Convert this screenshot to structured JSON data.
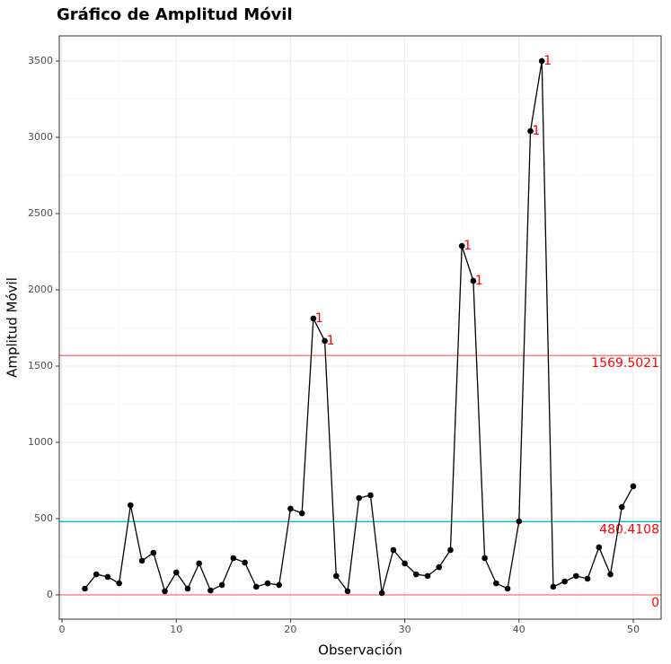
{
  "chart_data": {
    "type": "line",
    "title": "Gráfico de Amplitud Móvil",
    "x_label": "Observación",
    "y_label": "Amplitud Móvil",
    "x": [
      2,
      3,
      4,
      5,
      6,
      7,
      8,
      9,
      10,
      11,
      12,
      13,
      14,
      15,
      16,
      17,
      18,
      19,
      20,
      21,
      22,
      23,
      24,
      25,
      26,
      27,
      28,
      29,
      30,
      31,
      32,
      33,
      34,
      35,
      36,
      37,
      38,
      39,
      40,
      41,
      42,
      43,
      44,
      45,
      46,
      47,
      48,
      49,
      50
    ],
    "series": [
      {
        "color": "#000000",
        "values": [
          41,
          135,
          118,
          76,
          588,
          224,
          276,
          24,
          147,
          41,
          206,
          29,
          65,
          241,
          212,
          53,
          76,
          65,
          565,
          535,
          1812,
          1665,
          124,
          24,
          635,
          653,
          12,
          294,
          206,
          135,
          124,
          182,
          294,
          2288,
          2059,
          241,
          76,
          41,
          482,
          3041,
          3500,
          53,
          88,
          124,
          106,
          312,
          135,
          576,
          712
        ]
      }
    ],
    "hlines": [
      {
        "value": 1569.5021,
        "color": "#f8766d"
      },
      {
        "value": 480.4108,
        "color": "#00bfc4"
      },
      {
        "value": 0,
        "color": "#f8766d"
      }
    ],
    "violations": [
      {
        "x": 22,
        "label": "1"
      },
      {
        "x": 23,
        "label": "1"
      },
      {
        "x": 35,
        "label": "1"
      },
      {
        "x": 36,
        "label": "1"
      },
      {
        "x": 41,
        "label": "1"
      },
      {
        "x": 42,
        "label": "1"
      }
    ],
    "violation_color": "#ff0000",
    "xlim": [
      -0.24,
      52.44
    ],
    "ylim": [
      -159,
      3665
    ],
    "xticks": [
      0,
      10,
      20,
      30,
      40,
      50
    ],
    "yticks": [
      0,
      500,
      1000,
      1500,
      2000,
      2500,
      3000,
      3500
    ],
    "grid": true
  }
}
